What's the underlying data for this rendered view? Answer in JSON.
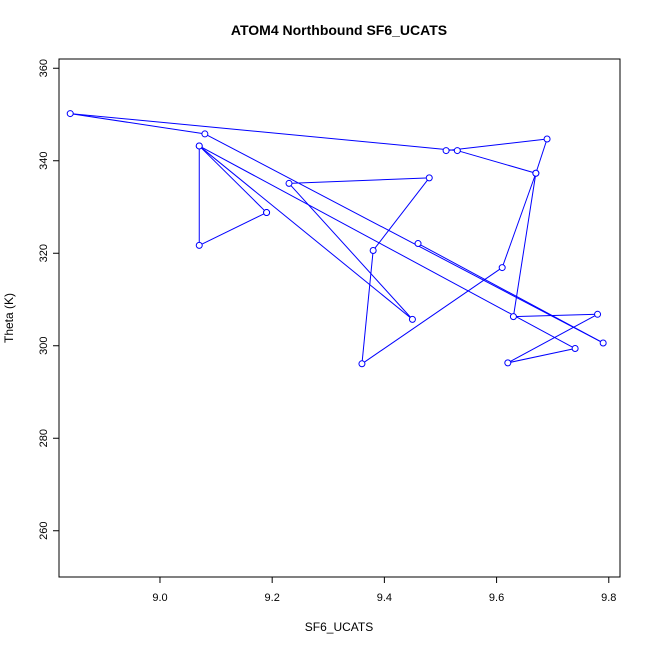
{
  "chart_data": {
    "type": "line",
    "title": "ATOM4 Northbound SF6_UCATS",
    "xlabel": "SF6_UCATS",
    "ylabel": "Theta (K)",
    "xlim": [
      8.82,
      9.82
    ],
    "ylim": [
      250,
      362
    ],
    "x_ticks": [
      9.0,
      9.2,
      9.4,
      9.6,
      9.8
    ],
    "x_tick_labels": [
      "9.0",
      "9.2",
      "9.4",
      "9.6",
      "9.8"
    ],
    "y_ticks": [
      260,
      280,
      300,
      320,
      340,
      360
    ],
    "y_tick_labels": [
      "260",
      "280",
      "300",
      "320",
      "340",
      "360"
    ],
    "grid": false,
    "legend": "none",
    "colors": {
      "series": "#0000ff",
      "axis": "#000000"
    },
    "marker": "open-circle",
    "series": [
      {
        "x": [
          9.51,
          9.69,
          9.67,
          9.63,
          9.78,
          9.62,
          9.74,
          9.07,
          9.07,
          9.19,
          9.19,
          9.07,
          9.45,
          9.23,
          9.48,
          9.38,
          9.36,
          9.61,
          9.67,
          9.53,
          8.84,
          9.08,
          9.79,
          9.46
        ],
        "y": [
          342.2,
          344.7,
          337.3,
          306.3,
          306.8,
          296.3,
          299.4,
          343.2,
          321.7,
          328.8,
          328.8,
          343.2,
          305.7,
          335.1,
          336.3,
          320.6,
          296.1,
          316.9,
          337.3,
          342.2,
          350.2,
          345.8,
          300.6,
          322.1
        ]
      }
    ]
  }
}
